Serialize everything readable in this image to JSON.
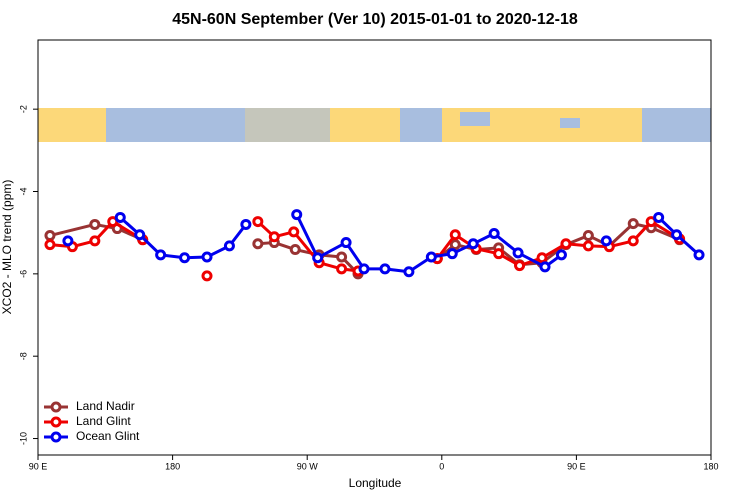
{
  "chart_data": {
    "type": "line",
    "title": "45N-60N September (Ver 10)   2015-01-01 to 2020-12-18",
    "x_label": "Longitude",
    "y_label": "XCO2 - MLO trend (ppm)",
    "xlim": [
      90,
      540
    ],
    "xticks": [
      {
        "value": 90,
        "label": "90 E"
      },
      180,
      {
        "value": 270,
        "label": "90 W"
      },
      {
        "value": 360,
        "label": "0"
      },
      {
        "value": 450,
        "label": "90 E"
      },
      {
        "value": 540,
        "label": "180"
      }
    ],
    "ylim": [
      -10.4,
      -0.32
    ],
    "yticks": [
      -2,
      -4,
      -6,
      -8,
      -10
    ],
    "legend": "bottom-left",
    "series": [
      {
        "name": "Land Nadir",
        "color": "#993333",
        "x": [
          98,
          128,
          143,
          160,
          null,
          237,
          248,
          262,
          278,
          293,
          304,
          null,
          357,
          369,
          383,
          398,
          412,
          427,
          443,
          458,
          472,
          488,
          500,
          519
        ],
        "values": [
          -5.07,
          -4.8,
          -4.9,
          -5.17,
          null,
          -5.27,
          -5.24,
          -5.41,
          -5.54,
          -5.59,
          -6.0,
          null,
          -5.63,
          -5.29,
          -5.41,
          -5.37,
          -5.78,
          -5.73,
          -5.29,
          -5.07,
          -5.32,
          -4.78,
          -4.88,
          -5.17
        ]
      },
      {
        "name": "Land Glint",
        "color": "#ee0000",
        "x": [
          98,
          113,
          128,
          140,
          160,
          null,
          203,
          null,
          237,
          248,
          261,
          278,
          293,
          304,
          null,
          357,
          369,
          383,
          398,
          412,
          427,
          443,
          458,
          472,
          488,
          500,
          519
        ],
        "values": [
          -5.29,
          -5.34,
          -5.2,
          -4.73,
          -5.17,
          null,
          -6.05,
          null,
          -4.73,
          -5.1,
          -4.98,
          -5.73,
          -5.88,
          -5.93,
          null,
          -5.63,
          -5.05,
          -5.39,
          -5.51,
          -5.8,
          -5.61,
          -5.27,
          -5.32,
          -5.34,
          -5.2,
          -4.73,
          -5.15
        ]
      },
      {
        "name": "Ocean Glint",
        "color": "#0000ee",
        "x": [
          110,
          null,
          145,
          158,
          172,
          188,
          203,
          218,
          229,
          null,
          263,
          277,
          296,
          308,
          322,
          338,
          353,
          367,
          381,
          395,
          411,
          429,
          440,
          null,
          470,
          null,
          505,
          517,
          532
        ],
        "values": [
          -5.2,
          null,
          -4.63,
          -5.05,
          -5.54,
          -5.61,
          -5.59,
          -5.32,
          -4.8,
          null,
          -4.56,
          -5.61,
          -5.24,
          -5.88,
          -5.88,
          -5.95,
          -5.59,
          -5.51,
          -5.27,
          -5.02,
          -5.49,
          -5.83,
          -5.54,
          null,
          -5.2,
          null,
          -4.63,
          -5.05,
          -5.54
        ]
      }
    ]
  }
}
